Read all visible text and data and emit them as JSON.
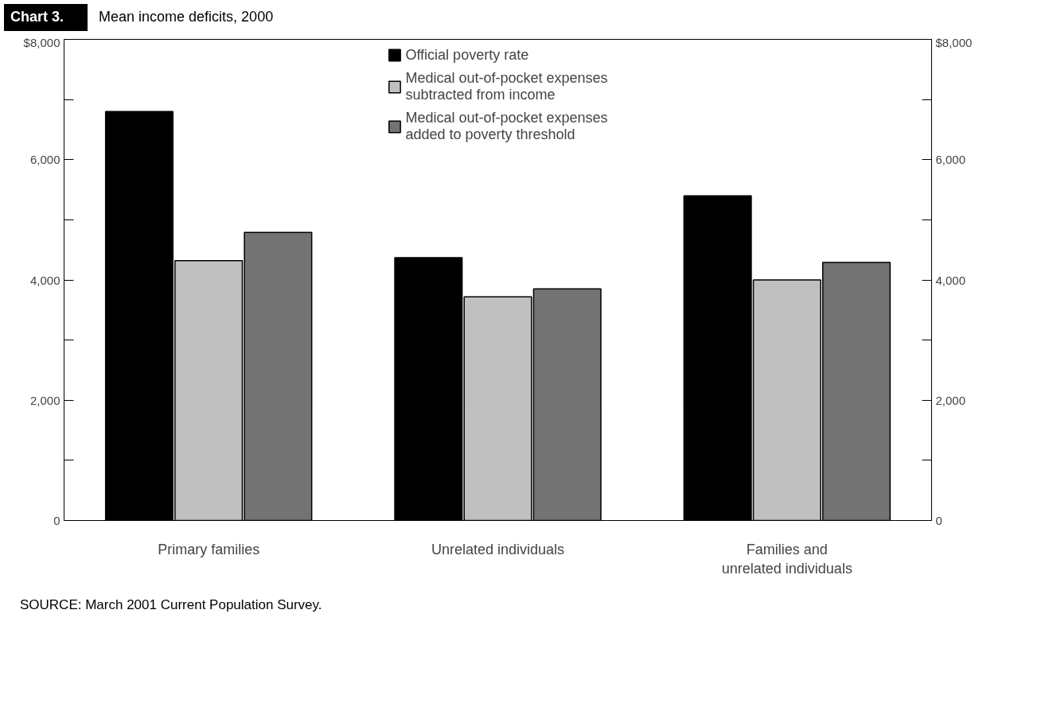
{
  "chart_data": {
    "type": "bar",
    "title": "Mean income deficits, 2000",
    "annotations": [
      "Chart 3.",
      "SOURCE: March 2001 Current Population Survey."
    ],
    "categories": [
      "Primary families",
      "Unrelated individuals",
      "Families and unrelated individuals"
    ],
    "series": [
      {
        "name": "Official poverty rate",
        "color": "#000000",
        "values": [
          6800,
          4370,
          5400
        ]
      },
      {
        "name": "Medical out-of-pocket expenses subtracted from income",
        "color": "#c0c0c0",
        "values": [
          4320,
          3720,
          4000
        ]
      },
      {
        "name": "Medical out-of-pocket expenses added to poverty threshold",
        "color": "#737373",
        "values": [
          4790,
          3850,
          4290
        ]
      }
    ],
    "ylim": [
      0,
      8000
    ],
    "yticks": [
      0,
      {
        "value": 1000,
        "label": null
      },
      "2,000",
      {
        "value": 3000,
        "label": null
      },
      "4,000",
      {
        "value": 5000,
        "label": null
      },
      "6,000",
      {
        "value": 7000,
        "label": null
      },
      {
        "value": 8000,
        "label": "$8,000"
      }
    ],
    "y2lim": [
      0,
      8000
    ],
    "y2ticks": [
      0,
      {
        "value": 1000,
        "label": null
      },
      {
        "value": 2000,
        "label": "2,000"
      },
      {
        "value": 3000,
        "label": null
      },
      {
        "value": 4000,
        "label": "4,000"
      },
      {
        "value": 5000,
        "label": null
      },
      {
        "value": 6000,
        "label": "6,000"
      },
      {
        "value": 7000,
        "label": null
      },
      {
        "value": 8000,
        "label": "$8,000"
      }
    ],
    "grid": false,
    "legend": "top"
  }
}
